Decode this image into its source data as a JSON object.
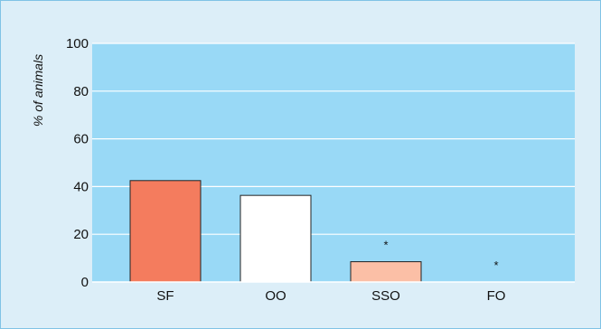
{
  "chart_data": {
    "type": "bar",
    "title": "",
    "xlabel": "",
    "ylabel": "% of animals",
    "ylim": [
      0,
      100
    ],
    "yticks": [
      0,
      20,
      40,
      60,
      80,
      100
    ],
    "categories": [
      "SF",
      "OO",
      "SSO",
      "FO"
    ],
    "values": [
      42.5,
      36.3,
      8.5,
      0
    ],
    "bar_colors": [
      "#f47c5e",
      "#ffffff",
      "#fbbfa6",
      "#ffffff"
    ],
    "annotations": [
      "",
      "",
      "*",
      "*"
    ],
    "grid": true,
    "plot_background": "#99d9f6",
    "frame_background": "#dceef8",
    "frame_border": "#7fc3e6"
  }
}
